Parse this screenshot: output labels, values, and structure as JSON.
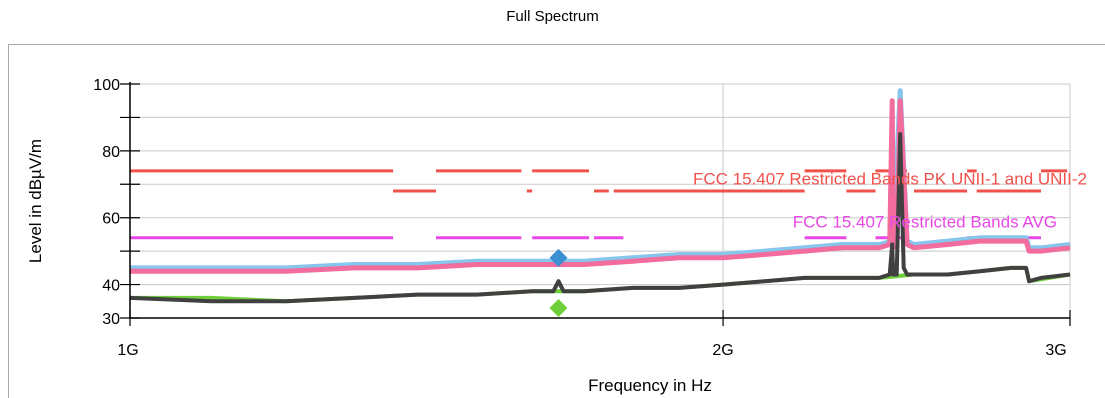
{
  "chart_data": {
    "type": "line",
    "title": "Full Spectrum",
    "xlabel": "Frequency in Hz",
    "ylabel": "Level in dBµV/m",
    "xscale": "log",
    "xlim": [
      1000000000,
      3000000000
    ],
    "ylim": [
      30,
      100
    ],
    "grid": true,
    "x_ticks": [
      {
        "value": 1000000000,
        "label": "1G"
      },
      {
        "value": 2000000000,
        "label": "2G"
      },
      {
        "value": 3000000000,
        "label": "3G"
      }
    ],
    "y_ticks": [
      {
        "value": 30,
        "label": "30"
      },
      {
        "value": 40,
        "label": "40"
      },
      {
        "value": 60,
        "label": "60"
      },
      {
        "value": 80,
        "label": "80"
      },
      {
        "value": 100,
        "label": "100"
      }
    ],
    "limit_lines": [
      {
        "label": "FCC 15.407 Restricted Bands PK UNII-1 and UNII-2",
        "color": "#f0524b",
        "segments": [
          {
            "x": [
              1000000000,
              1360000000
            ],
            "y": 74
          },
          {
            "x": [
              1360000000,
              1430000000
            ],
            "y": 68
          },
          {
            "x": [
              1430000000,
              1580000000
            ],
            "y": 74
          },
          {
            "x": [
              1590000000,
              1600000000
            ],
            "y": 68
          },
          {
            "x": [
              1600000000,
              1710000000
            ],
            "y": 74
          },
          {
            "x": [
              1720000000,
              1750000000
            ],
            "y": 68
          },
          {
            "x": [
              1760000000,
              2200000000
            ],
            "y": 68
          },
          {
            "x": [
              2200000000,
              2310000000
            ],
            "y": 74
          },
          {
            "x": [
              2310000000,
              2390000000
            ],
            "y": 68
          },
          {
            "x": [
              2390000000,
              2480000000
            ],
            "y": 74
          },
          {
            "x": [
              2500000000,
              2660000000
            ],
            "y": 68
          },
          {
            "x": [
              2660000000,
              2690000000
            ],
            "y": 74
          },
          {
            "x": [
              2690000000,
              2900000000
            ],
            "y": 68
          },
          {
            "x": [
              2900000000,
              2990000000
            ],
            "y": 74
          }
        ]
      },
      {
        "label": "FCC 15.407 Restricted Bands AVG",
        "color": "#ea48e6",
        "segments": [
          {
            "x": [
              1000000000,
              1360000000
            ],
            "y": 54
          },
          {
            "x": [
              1430000000,
              1580000000
            ],
            "y": 54
          },
          {
            "x": [
              1600000000,
              1710000000
            ],
            "y": 54
          },
          {
            "x": [
              1720000000,
              1780000000
            ],
            "y": 54
          },
          {
            "x": [
              2200000000,
              2310000000
            ],
            "y": 54
          },
          {
            "x": [
              2390000000,
              2480000000
            ],
            "y": 54
          },
          {
            "x": [
              2660000000,
              2900000000
            ],
            "y": 54
          }
        ]
      }
    ],
    "series": [
      {
        "role": "peak",
        "color": "#f26d9d",
        "x": [
          1000000000,
          1100000000,
          1200000000,
          1300000000,
          1400000000,
          1500000000,
          1600000000,
          1700000000,
          1800000000,
          1900000000,
          2000000000,
          2100000000,
          2200000000,
          2300000000,
          2400000000,
          2430000000,
          2437000000,
          2440000000,
          2450000000,
          2460000000,
          2480000000,
          2500000000,
          2600000000,
          2700000000,
          2800000000,
          2850000000,
          2860000000,
          2900000000,
          3000000000
        ],
        "y": [
          44,
          44,
          44,
          45,
          45,
          46,
          46,
          46,
          47,
          48,
          48,
          49,
          50,
          51,
          51,
          52,
          95,
          52,
          51,
          95,
          52,
          51,
          52,
          53,
          53,
          53,
          50,
          50,
          51
        ]
      },
      {
        "role": "peak-max",
        "color": "#86c5ec",
        "x": [
          1000000000,
          1100000000,
          1200000000,
          1300000000,
          1400000000,
          1500000000,
          1600000000,
          1700000000,
          1800000000,
          1900000000,
          2000000000,
          2100000000,
          2200000000,
          2300000000,
          2400000000,
          2440000000,
          2460000000,
          2480000000,
          2500000000,
          2600000000,
          2700000000,
          2800000000,
          2850000000,
          2860000000,
          2900000000,
          3000000000
        ],
        "y": [
          45,
          45,
          45,
          46,
          46,
          47,
          47,
          47,
          48,
          49,
          49,
          50,
          51,
          52,
          52,
          53,
          98,
          53,
          52,
          53,
          54,
          54,
          54,
          51,
          51,
          52
        ]
      },
      {
        "role": "average",
        "color": "#404040",
        "x": [
          1000000000,
          1100000000,
          1200000000,
          1300000000,
          1400000000,
          1500000000,
          1600000000,
          1640000000,
          1650000000,
          1660000000,
          1700000000,
          1800000000,
          1900000000,
          2000000000,
          2100000000,
          2200000000,
          2300000000,
          2400000000,
          2430000000,
          2437000000,
          2440000000,
          2450000000,
          2460000000,
          2470000000,
          2480000000,
          2600000000,
          2700000000,
          2800000000,
          2850000000,
          2860000000,
          2900000000,
          3000000000
        ],
        "y": [
          36,
          35,
          35,
          36,
          37,
          37,
          38,
          38,
          41,
          38,
          38,
          39,
          39,
          40,
          41,
          42,
          42,
          42,
          43,
          52,
          43,
          43,
          85,
          45,
          43,
          43,
          44,
          45,
          45,
          41,
          42,
          43
        ]
      },
      {
        "role": "average-min",
        "color": "#6fcf3a",
        "x": [
          1000000000,
          1100000000,
          1200000000,
          1300000000,
          1400000000,
          1500000000,
          1600000000,
          1700000000,
          1800000000,
          1900000000,
          2000000000,
          2100000000,
          2200000000,
          2300000000,
          2400000000,
          2500000000,
          2600000000,
          2700000000,
          2800000000,
          2850000000,
          2860000000,
          3000000000
        ],
        "y": [
          36,
          36,
          35,
          36,
          37,
          37,
          38,
          38,
          39,
          39,
          40,
          41,
          42,
          42,
          42,
          43,
          43,
          44,
          45,
          45,
          41,
          43
        ]
      }
    ],
    "markers": [
      {
        "shape": "diamond",
        "color": "#3d8fd4",
        "x": 1650000000,
        "y": 48
      },
      {
        "shape": "diamond",
        "color": "#6fcf3a",
        "x": 1650000000,
        "y": 33
      }
    ]
  }
}
